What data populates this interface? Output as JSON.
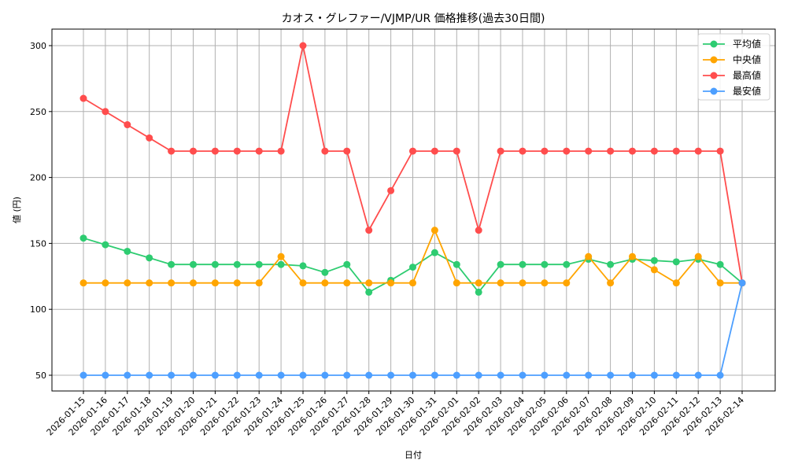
{
  "chart_data": {
    "type": "line",
    "title": "カオス・グレファー/VJMP/UR 価格推移(過去30日間)",
    "xlabel": "日付",
    "ylabel": "値 (円)",
    "ylim": [
      37,
      313
    ],
    "yticks": [
      50,
      100,
      150,
      200,
      250,
      300
    ],
    "grid": true,
    "legend_position": "upper right",
    "categories": [
      "2026-01-15",
      "2026-01-16",
      "2026-01-17",
      "2026-01-18",
      "2026-01-19",
      "2026-01-20",
      "2026-01-21",
      "2026-01-22",
      "2026-01-23",
      "2026-01-24",
      "2026-01-25",
      "2026-01-26",
      "2026-01-27",
      "2026-01-28",
      "2026-01-29",
      "2026-01-30",
      "2026-01-31",
      "2026-02-01",
      "2026-02-02",
      "2026-02-03",
      "2026-02-04",
      "2026-02-05",
      "2026-02-06",
      "2026-02-07",
      "2026-02-08",
      "2026-02-09",
      "2026-02-10",
      "2026-02-11",
      "2026-02-12",
      "2026-02-13",
      "2026-02-14"
    ],
    "series": [
      {
        "name": "平均値",
        "color": "#2ecc71",
        "values": [
          154,
          149,
          144,
          139,
          134,
          134,
          134,
          134,
          134,
          134,
          133,
          128,
          134,
          113,
          122,
          132,
          143,
          134,
          113,
          134,
          134,
          134,
          134,
          138,
          134,
          138,
          137,
          136,
          138,
          134,
          120
        ]
      },
      {
        "name": "中央値",
        "color": "#ffa500",
        "values": [
          120,
          120,
          120,
          120,
          120,
          120,
          120,
          120,
          120,
          140,
          120,
          120,
          120,
          120,
          120,
          120,
          160,
          120,
          120,
          120,
          120,
          120,
          120,
          140,
          120,
          140,
          130,
          120,
          140,
          120,
          120
        ]
      },
      {
        "name": "最高値",
        "color": "#ff4d4d",
        "values": [
          260,
          250,
          240,
          230,
          220,
          220,
          220,
          220,
          220,
          220,
          300,
          220,
          220,
          160,
          190,
          220,
          220,
          220,
          160,
          220,
          220,
          220,
          220,
          220,
          220,
          220,
          220,
          220,
          220,
          220,
          120
        ]
      },
      {
        "name": "最安値",
        "color": "#4d9fff",
        "values": [
          50,
          50,
          50,
          50,
          50,
          50,
          50,
          50,
          50,
          50,
          50,
          50,
          50,
          50,
          50,
          50,
          50,
          50,
          50,
          50,
          50,
          50,
          50,
          50,
          50,
          50,
          50,
          50,
          50,
          50,
          120
        ]
      }
    ]
  }
}
